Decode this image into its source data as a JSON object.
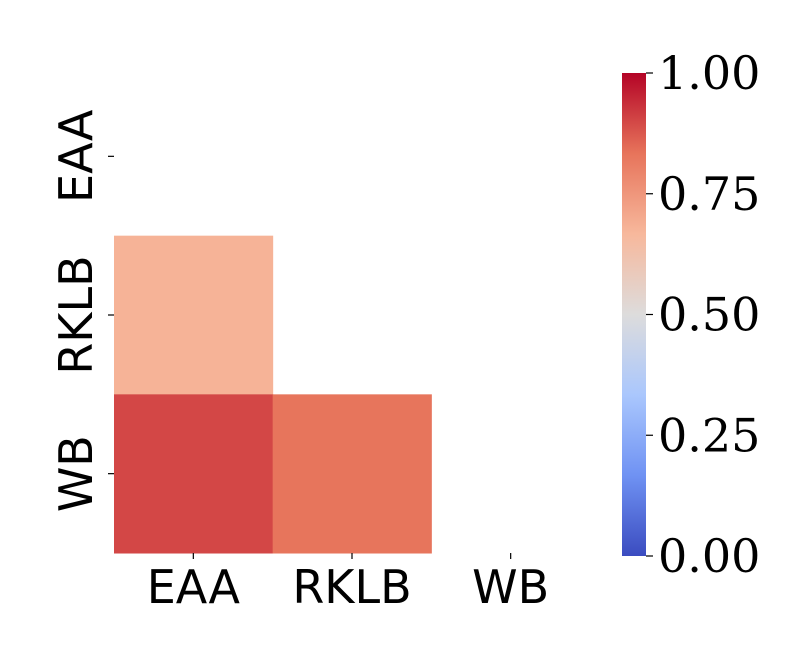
{
  "chart_data": {
    "type": "heatmap",
    "variant": "lower-triangle-correlation",
    "categories": [
      "EAA",
      "RKLB",
      "WB"
    ],
    "row_labels": [
      "EAA",
      "RKLB",
      "WB"
    ],
    "col_labels": [
      "EAA",
      "RKLB",
      "WB"
    ],
    "cells": [
      {
        "row": "RKLB",
        "col": "EAA",
        "value": 0.68
      },
      {
        "row": "WB",
        "col": "EAA",
        "value": 0.9
      },
      {
        "row": "WB",
        "col": "RKLB",
        "value": 0.83
      }
    ],
    "masked": "diagonal-and-upper-triangle",
    "colorbar": {
      "colormap": "coolwarm",
      "vmin": 0.0,
      "vmax": 1.0,
      "ticks": [
        "0.00",
        "0.25",
        "0.50",
        "0.75",
        "1.00"
      ],
      "tick_values": [
        0.0,
        0.25,
        0.5,
        0.75,
        1.0
      ],
      "gradient_colors": [
        "#3b4cc0",
        "#6f92f3",
        "#aac7fd",
        "#dddcdc",
        "#f7b89c",
        "#e7745b",
        "#b40426"
      ]
    },
    "title": "",
    "xlabel": "",
    "ylabel": "",
    "grid": false
  }
}
